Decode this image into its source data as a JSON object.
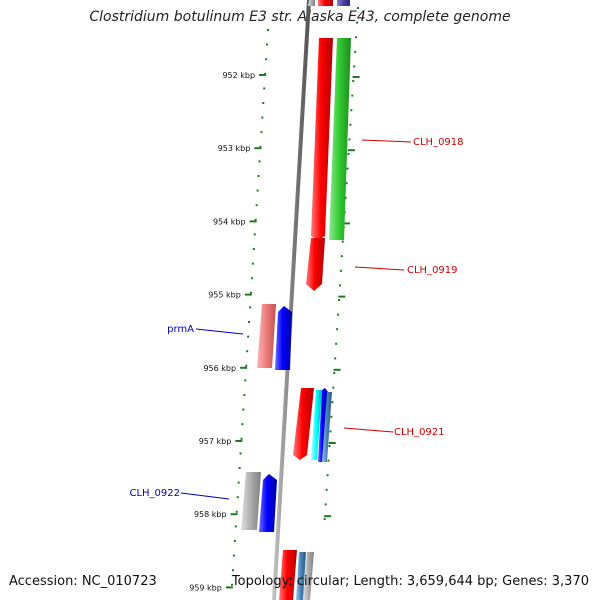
{
  "header": {
    "title": "Clostridium botulinum E3 str. Alaska E43, complete genome"
  },
  "footer": {
    "accession": "Accession: NC_010723",
    "summary": "Topology: circular; Length: 3,659,644 bp; Genes: 3,370"
  },
  "map": {
    "ruler_labels": [
      "952 kbp",
      "953 kbp",
      "954 kbp",
      "955 kbp",
      "956 kbp",
      "957 kbp",
      "958 kbp",
      "959 kbp"
    ],
    "gene_labels": [
      {
        "id": "CLH_0918",
        "color": "#cc0000"
      },
      {
        "id": "CLH_0919",
        "color": "#cc0000"
      },
      {
        "id": "prmA",
        "color": "#0000bb"
      },
      {
        "id": "CLH_0921",
        "color": "#cc0000"
      },
      {
        "id": "CLH_0922",
        "color": "#0000bb"
      }
    ],
    "colors": {
      "ruler_tick": "#1f7a1f",
      "backbone": "#808080",
      "cds_red": "#ff0000",
      "cds_green": "#33cc33",
      "cds_blue": "#0000ff",
      "cds_pink": "#f08080",
      "cds_grey": "#b0b0b0",
      "cds_cyan": "#00ffff",
      "cds_purple": "#4b3f9e",
      "cds_steel": "#4682b4"
    }
  }
}
